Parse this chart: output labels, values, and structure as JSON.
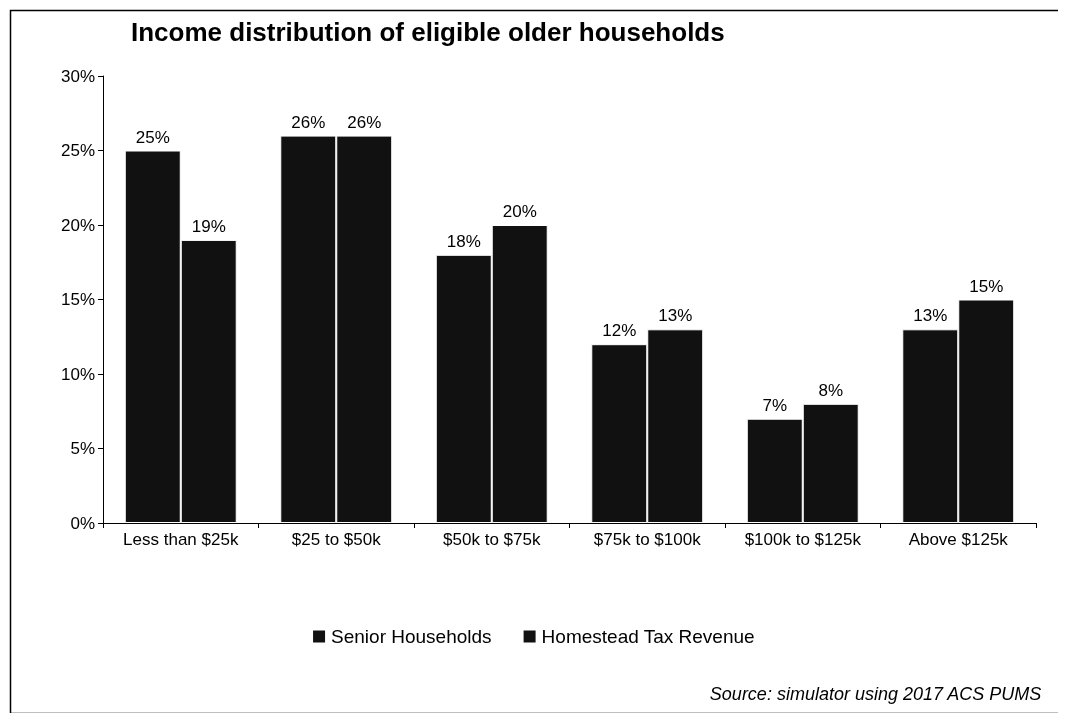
{
  "chart_data": {
    "type": "bar",
    "title": "Income distribution of eligible older households",
    "categories": [
      "Less than $25k",
      "$25 to $50k",
      "$50k to $75k",
      "$75k to $100k",
      "$100k to $125k",
      "Above $125k"
    ],
    "series": [
      {
        "name": "Senior Households",
        "color": "#111111",
        "values": [
          25,
          26,
          18,
          12,
          7,
          13
        ],
        "value_labels": [
          "25%",
          "26%",
          "18%",
          "12%",
          "7%",
          "13%"
        ]
      },
      {
        "name": "Homestead Tax Revenue",
        "color": "#111111",
        "values": [
          19,
          26,
          20,
          13,
          8,
          15
        ],
        "value_labels": [
          "19%",
          "26%",
          "20%",
          "13%",
          "8%",
          "15%"
        ]
      }
    ],
    "ylim": [
      0,
      30
    ],
    "yticks": [
      {
        "value": 0,
        "label": "0%"
      },
      {
        "value": 5,
        "label": "5%"
      },
      {
        "value": 10,
        "label": "10%"
      },
      {
        "value": 15,
        "label": "15%"
      },
      {
        "value": 20,
        "label": "20%"
      },
      {
        "value": 25,
        "label": "25%"
      },
      {
        "value": 30,
        "label": "30%"
      }
    ],
    "grid": false,
    "legend": "bottom",
    "annotations": [
      "Source: simulator using 2017 ACS PUMS"
    ]
  }
}
